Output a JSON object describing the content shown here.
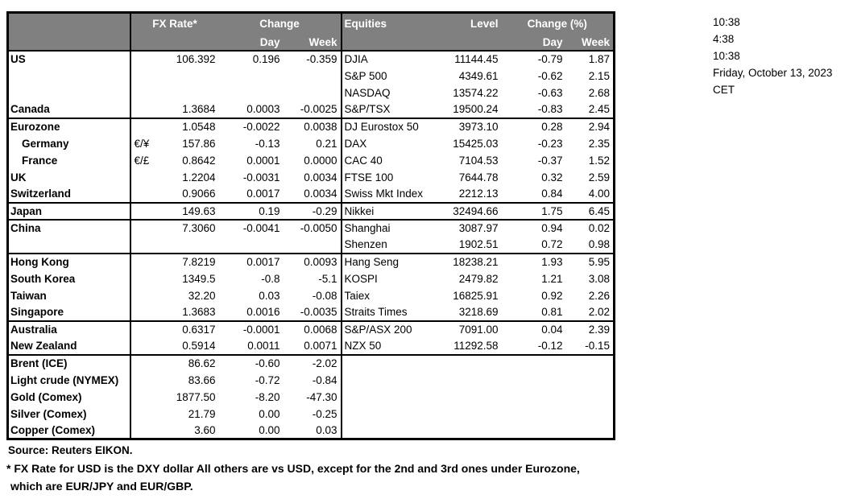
{
  "colors": {
    "header_bg": "#808080",
    "header_text": "#ffffff",
    "border": "#000000"
  },
  "fx_table": {
    "header": {
      "fx_rate": "FX Rate*",
      "change": "Change",
      "day": "Day",
      "week": "Week",
      "equities": "Equities",
      "level": "Level",
      "change_pct": "Change (%)"
    },
    "rows": [
      {
        "country": "US",
        "indent": false,
        "pair": "",
        "fx": "106.392",
        "fx_day": "0.196",
        "fx_week": "-0.359",
        "equity": "DJIA",
        "level": "11144.45",
        "eq_day": "-0.79",
        "eq_week": "1.87",
        "sep": false
      },
      {
        "country": "",
        "indent": false,
        "pair": "",
        "fx": "",
        "fx_day": "",
        "fx_week": "",
        "equity": "S&P 500",
        "level": "4349.61",
        "eq_day": "-0.62",
        "eq_week": "2.15",
        "sep": false
      },
      {
        "country": "",
        "indent": false,
        "pair": "",
        "fx": "",
        "fx_day": "",
        "fx_week": "",
        "equity": "NASDAQ",
        "level": "13574.22",
        "eq_day": "-0.63",
        "eq_week": "2.68",
        "sep": false
      },
      {
        "country": "Canada",
        "indent": false,
        "pair": "",
        "fx": "1.3684",
        "fx_day": "0.0003",
        "fx_week": "-0.0025",
        "equity": "S&P/TSX",
        "level": "19500.24",
        "eq_day": "-0.83",
        "eq_week": "2.45",
        "sep": false
      },
      {
        "country": "Eurozone",
        "indent": false,
        "pair": "",
        "fx": "1.0548",
        "fx_day": "-0.0022",
        "fx_week": "0.0038",
        "equity": "DJ Eurostox 50",
        "level": "3973.10",
        "eq_day": "0.28",
        "eq_week": "2.94",
        "sep": true
      },
      {
        "country": "Germany",
        "indent": true,
        "pair": "€/¥",
        "fx": "157.86",
        "fx_day": "-0.13",
        "fx_week": "0.21",
        "equity": "DAX",
        "level": "15425.03",
        "eq_day": "-0.23",
        "eq_week": "2.35",
        "sep": false
      },
      {
        "country": "France",
        "indent": true,
        "pair": "€/£",
        "fx": "0.8642",
        "fx_day": "0.0001",
        "fx_week": "0.0000",
        "equity": "CAC 40",
        "level": "7104.53",
        "eq_day": "-0.37",
        "eq_week": "1.52",
        "sep": false
      },
      {
        "country": "UK",
        "indent": false,
        "pair": "",
        "fx": "1.2204",
        "fx_day": "-0.0031",
        "fx_week": "0.0034",
        "equity": "FTSE 100",
        "level": "7644.78",
        "eq_day": "0.32",
        "eq_week": "2.59",
        "sep": false
      },
      {
        "country": "Switzerland",
        "indent": false,
        "pair": "",
        "fx": "0.9066",
        "fx_day": "0.0017",
        "fx_week": "0.0034",
        "equity": "Swiss Mkt Index",
        "level": "2212.13",
        "eq_day": "0.84",
        "eq_week": "4.00",
        "sep": false
      },
      {
        "country": "Japan",
        "indent": false,
        "pair": "",
        "fx": "149.63",
        "fx_day": "0.19",
        "fx_week": "-0.29",
        "equity": "Nikkei",
        "level": "32494.66",
        "eq_day": "1.75",
        "eq_week": "6.45",
        "sep": true
      },
      {
        "country": "China",
        "indent": false,
        "pair": "",
        "fx": "7.3060",
        "fx_day": "-0.0041",
        "fx_week": "-0.0050",
        "equity": "Shanghai",
        "level": "3087.97",
        "eq_day": "0.94",
        "eq_week": "0.02",
        "sep": true
      },
      {
        "country": "",
        "indent": false,
        "pair": "",
        "fx": "",
        "fx_day": "",
        "fx_week": "",
        "equity": "Shenzen",
        "level": "1902.51",
        "eq_day": "0.72",
        "eq_week": "0.98",
        "sep": false
      },
      {
        "country": "Hong Kong",
        "indent": false,
        "pair": "",
        "fx": "7.8219",
        "fx_day": "0.0017",
        "fx_week": "0.0093",
        "equity": "Hang Seng",
        "level": "18238.21",
        "eq_day": "1.93",
        "eq_week": "5.95",
        "sep": true
      },
      {
        "country": "South Korea",
        "indent": false,
        "pair": "",
        "fx": "1349.5",
        "fx_day": "-0.8",
        "fx_week": "-5.1",
        "equity": "KOSPI",
        "level": "2479.82",
        "eq_day": "1.21",
        "eq_week": "3.08",
        "sep": false
      },
      {
        "country": "Taiwan",
        "indent": false,
        "pair": "",
        "fx": "32.20",
        "fx_day": "0.03",
        "fx_week": "-0.08",
        "equity": "Taiex",
        "level": "16825.91",
        "eq_day": "0.92",
        "eq_week": "2.26",
        "sep": false
      },
      {
        "country": "Singapore",
        "indent": false,
        "pair": "",
        "fx": "1.3683",
        "fx_day": "0.0016",
        "fx_week": "-0.0035",
        "equity": "Straits Times",
        "level": "3218.69",
        "eq_day": "0.81",
        "eq_week": "2.02",
        "sep": false
      },
      {
        "country": "Australia",
        "indent": false,
        "pair": "",
        "fx": "0.6317",
        "fx_day": "-0.0001",
        "fx_week": "0.0068",
        "equity": "S&P/ASX  200",
        "level": "7091.00",
        "eq_day": "0.04",
        "eq_week": "2.39",
        "sep": true
      },
      {
        "country": "New Zealand",
        "indent": false,
        "pair": "",
        "fx": "0.5914",
        "fx_day": "0.0011",
        "fx_week": "0.0071",
        "equity": "NZX 50",
        "level": "11292.58",
        "eq_day": "-0.12",
        "eq_week": "-0.15",
        "sep": false
      },
      {
        "country": "Brent (ICE)",
        "indent": false,
        "pair": "",
        "fx": "86.62",
        "fx_day": "-0.60",
        "fx_week": "-2.02",
        "equity": "",
        "level": "",
        "eq_day": "",
        "eq_week": "",
        "sep": true
      },
      {
        "country": "Light crude (NYMEX)",
        "indent": false,
        "pair": "",
        "fx": "83.66",
        "fx_day": "-0.72",
        "fx_week": "-0.84",
        "equity": "",
        "level": "",
        "eq_day": "",
        "eq_week": "",
        "sep": false
      },
      {
        "country": "Gold (Comex)",
        "indent": false,
        "pair": "",
        "fx": "1877.50",
        "fx_day": "-8.20",
        "fx_week": "-47.30",
        "equity": "",
        "level": "",
        "eq_day": "",
        "eq_week": "",
        "sep": false
      },
      {
        "country": "Silver (Comex)",
        "indent": false,
        "pair": "",
        "fx": "21.79",
        "fx_day": "0.00",
        "fx_week": "-0.25",
        "equity": "",
        "level": "",
        "eq_day": "",
        "eq_week": "",
        "sep": false
      },
      {
        "country": "Copper (Comex)",
        "indent": false,
        "pair": "",
        "fx": "3.60",
        "fx_day": "0.00",
        "fx_week": "0.03",
        "equity": "",
        "level": "",
        "eq_day": "",
        "eq_week": "",
        "sep": false
      }
    ]
  },
  "timestamps": [
    "10:38",
    "4:38",
    "10:38",
    "Friday, October 13, 2023",
    "CET"
  ],
  "footer": {
    "source": "Source:  Reuters EIKON.",
    "note1": "* FX Rate for USD is the DXY dollar  All others are vs USD, except for the 2nd and 3rd ones under Eurozone,",
    "note2": "which are EUR/JPY and EUR/GBP."
  }
}
